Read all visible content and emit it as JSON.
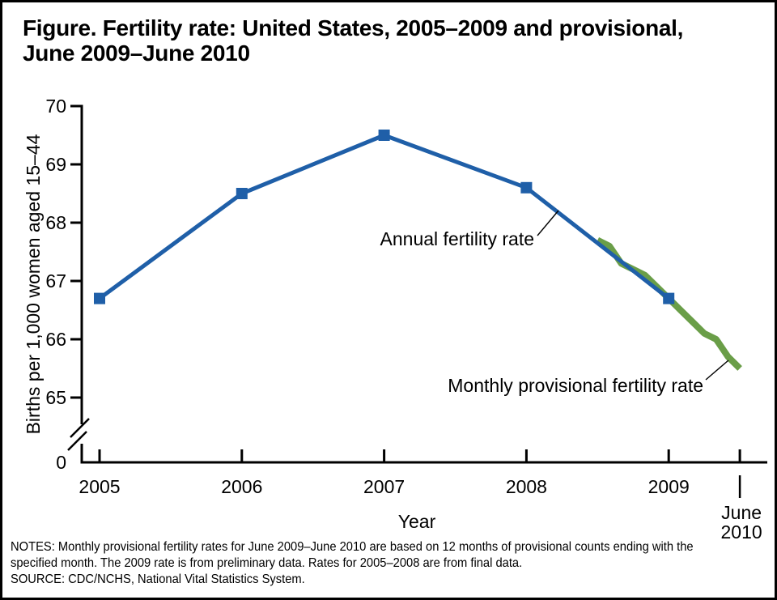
{
  "title": "Figure. Fertility rate: United States, 2005–2009 and provisional,\nJune 2009–June 2010",
  "chart_data": {
    "type": "line",
    "title": "Figure. Fertility rate: United States, 2005–2009 and provisional, June 2009–June 2010",
    "xlabel": "Year",
    "ylabel": "Births per 1,000 women aged 15–44",
    "x_tick_labels": [
      "2005",
      "2006",
      "2007",
      "2008",
      "2009"
    ],
    "x_end_label_lines": [
      "June",
      "2010"
    ],
    "y_tick_labels": [
      "70",
      "69",
      "68",
      "67",
      "66",
      "65"
    ],
    "y_tick_values": [
      70,
      69,
      68,
      67,
      66,
      65
    ],
    "y_origin_label": "0",
    "y_axis_break": true,
    "ylim_display": [
      65,
      70
    ],
    "grid": false,
    "legend": "inline-annotations",
    "series": [
      {
        "name": "Annual fertility rate",
        "color": "#1F5FA8",
        "marker": "square",
        "x": [
          2005,
          2006,
          2007,
          2008,
          2009
        ],
        "values": [
          66.7,
          68.5,
          69.5,
          68.6,
          66.7
        ]
      },
      {
        "name": "Monthly provisional fertility rate",
        "color": "#6A9E48",
        "marker": "none",
        "period": "June 2009–June 2010",
        "x_plot_start": 2008.5,
        "x_plot_end": 2009.5,
        "values": [
          67.7,
          67.6,
          67.3,
          67.2,
          67.1,
          66.9,
          66.7,
          66.5,
          66.3,
          66.1,
          66.0,
          65.7,
          65.5
        ]
      }
    ]
  },
  "notes_lines": [
    "NOTES: Monthly provisional fertility rates for June 2009–June 2010 are based on 12 months of provisional counts ending with the",
    "specified month. The 2009 rate is from preliminary data. Rates for 2005–2008 are from final data.",
    "SOURCE: CDC/NCHS, National Vital Statistics System."
  ]
}
